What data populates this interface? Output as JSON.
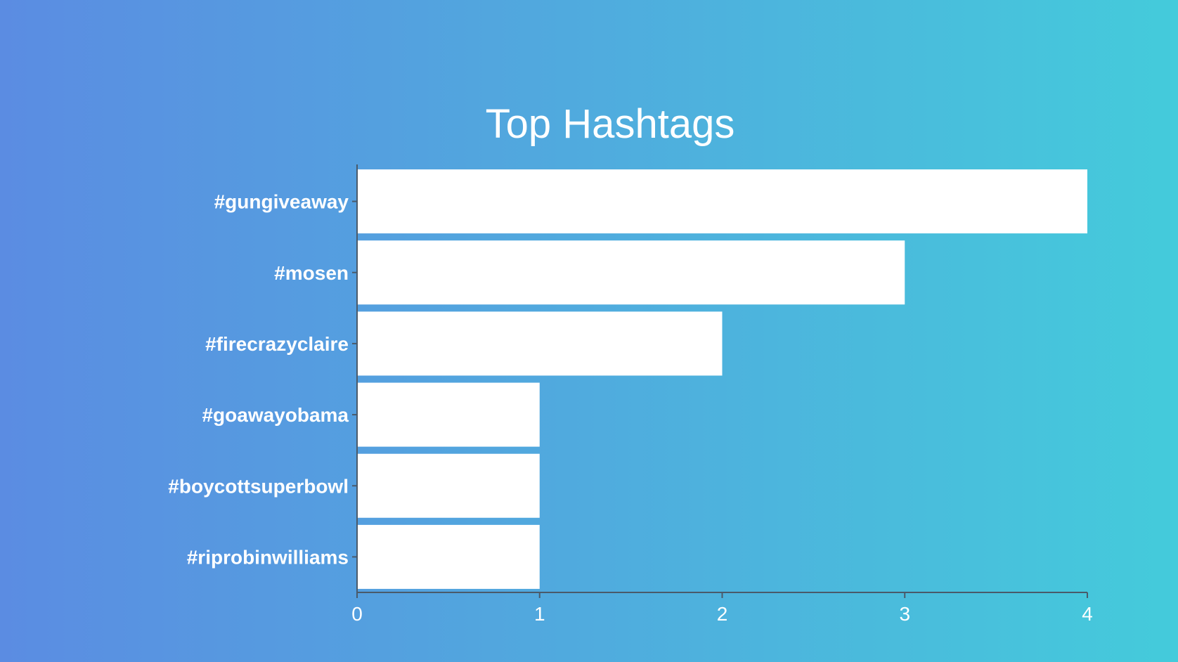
{
  "colors": {
    "background_start": "#5b8ce2",
    "background_end": "#44cbdb",
    "bar": "#ffffff",
    "axis": "#4a5a6a",
    "text": "#ffffff"
  },
  "chart_data": {
    "type": "bar",
    "orientation": "horizontal",
    "title": "Top Hashtags",
    "categories": [
      "#gungiveaway",
      "#mosen",
      "#firecrazyclaire",
      "#goawayobama",
      "#boycottsuperbowl",
      "#riprobinwilliams"
    ],
    "values": [
      4,
      3,
      2,
      1,
      1,
      1
    ],
    "xlim": [
      0,
      4
    ],
    "x_ticks": [
      "0",
      "1",
      "2",
      "3",
      "4"
    ],
    "xlabel": "",
    "ylabel": "",
    "grid": false,
    "legend": "none"
  }
}
